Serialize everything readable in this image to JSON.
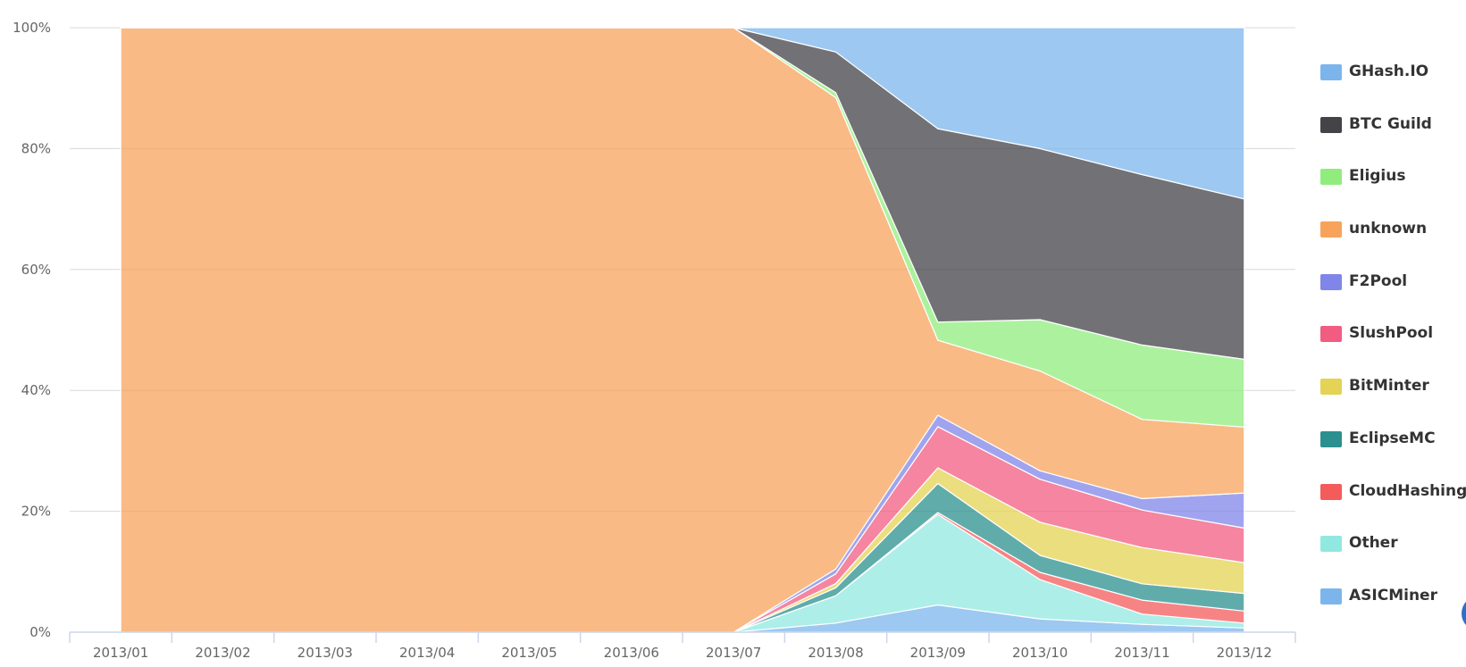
{
  "chart_data": {
    "type": "area",
    "stacking": "percent",
    "grid": true,
    "legend_position": "right",
    "x": [
      "2013/01",
      "2013/02",
      "2013/03",
      "2013/04",
      "2013/05",
      "2013/06",
      "2013/07",
      "2013/08",
      "2013/09",
      "2013/10",
      "2013/11",
      "2013/12"
    ],
    "y_ticks": [
      "0%",
      "20%",
      "40%",
      "60%",
      "80%",
      "100%"
    ],
    "ylim": [
      0,
      100
    ],
    "series": [
      {
        "name": "ASICMiner",
        "color": "#7cb5ec",
        "values": [
          0,
          0,
          0,
          0,
          0,
          0,
          0,
          1.5,
          4.5,
          2.2,
          1.3,
          0.7
        ]
      },
      {
        "name": "Other",
        "color": "#91e8e1",
        "values": [
          0,
          0,
          0,
          0,
          0,
          0,
          0,
          4.5,
          15.0,
          6.5,
          1.7,
          0.8
        ]
      },
      {
        "name": "CloudHashing",
        "color": "#f45b5b",
        "values": [
          0,
          0,
          0,
          0,
          0,
          0,
          0,
          0.0,
          0.3,
          1.2,
          2.3,
          2.0
        ]
      },
      {
        "name": "EclipseMC",
        "color": "#2b908f",
        "values": [
          0,
          0,
          0,
          0,
          0,
          0,
          0,
          1.3,
          4.8,
          2.8,
          2.7,
          2.9
        ]
      },
      {
        "name": "BitMinter",
        "color": "#e4d354",
        "values": [
          0,
          0,
          0,
          0,
          0,
          0,
          0,
          0.7,
          2.6,
          5.5,
          6.0,
          5.1
        ]
      },
      {
        "name": "SlushPool",
        "color": "#f15c80",
        "values": [
          0,
          0,
          0,
          0,
          0,
          0,
          0,
          1.6,
          6.8,
          7.1,
          6.2,
          5.7
        ]
      },
      {
        "name": "F2Pool",
        "color": "#8085e9",
        "values": [
          0,
          0,
          0,
          0,
          0,
          0,
          0,
          0.8,
          1.9,
          1.4,
          1.9,
          5.8
        ]
      },
      {
        "name": "unknown",
        "color": "#f7a35c",
        "values": [
          100,
          100,
          100,
          100,
          100,
          100,
          100,
          77.6,
          12.4,
          16.5,
          13.1,
          10.9
        ]
      },
      {
        "name": "Eligius",
        "color": "#90ed7d",
        "values": [
          0,
          0,
          0,
          0,
          0,
          0,
          0,
          0.8,
          3.0,
          8.5,
          12.3,
          11.2
        ]
      },
      {
        "name": "BTC Guild",
        "color": "#434348",
        "values": [
          0,
          0,
          0,
          0,
          0,
          0,
          0,
          6.7,
          32.0,
          28.3,
          28.2,
          26.5
        ]
      },
      {
        "name": "GHash.IO",
        "color": "#7cb5ec",
        "values": [
          0,
          0,
          0,
          0,
          0,
          0,
          0,
          4.0,
          16.7,
          20.0,
          24.3,
          28.3
        ]
      }
    ]
  },
  "legend": {
    "items": [
      {
        "label": "GHash.IO",
        "color": "#7cb5ec"
      },
      {
        "label": "BTC Guild",
        "color": "#434348"
      },
      {
        "label": "Eligius",
        "color": "#90ed7d"
      },
      {
        "label": "unknown",
        "color": "#f7a35c"
      },
      {
        "label": "F2Pool",
        "color": "#8085e9"
      },
      {
        "label": "SlushPool",
        "color": "#f15c80"
      },
      {
        "label": "BitMinter",
        "color": "#e4d354"
      },
      {
        "label": "EclipseMC",
        "color": "#2b908f"
      },
      {
        "label": "CloudHashing",
        "color": "#f45b5b"
      },
      {
        "label": "Other",
        "color": "#91e8e1"
      },
      {
        "label": "ASICMiner",
        "color": "#7cb5ec"
      }
    ]
  }
}
